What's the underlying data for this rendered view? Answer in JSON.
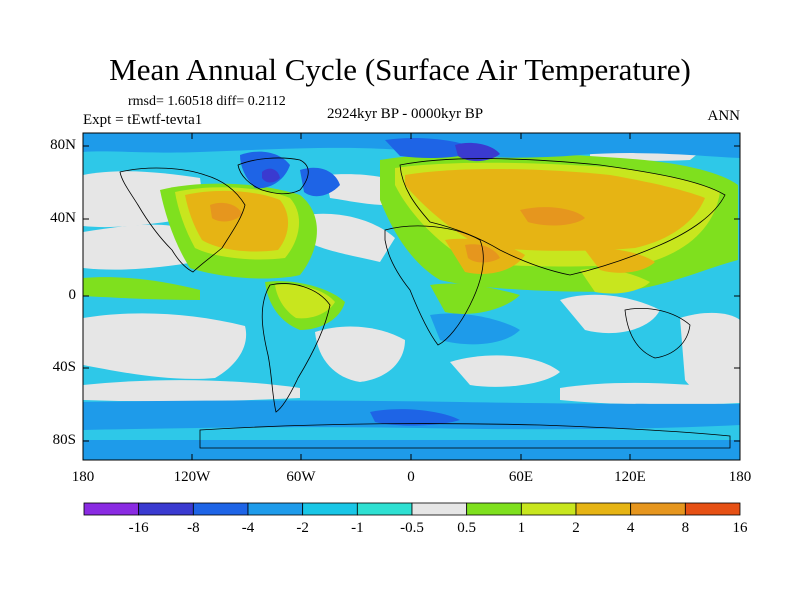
{
  "title": "Mean Annual Cycle (Surface Air Temperature)",
  "stats": "rmsd= 1.60518 diff= 0.2112",
  "experiment": "Expt = tEwtf-tevta1",
  "period": "2924kyr BP - 0000kyr BP",
  "season": "ANN",
  "lat_labels": [
    "80N",
    "40N",
    "0",
    "40S",
    "80S"
  ],
  "lon_labels": [
    "180",
    "120W",
    "60W",
    "0",
    "60E",
    "120E",
    "180"
  ],
  "colorbar": {
    "labels": [
      "-16",
      "-8",
      "-4",
      "-2",
      "-1",
      "-0.5",
      "0.5",
      "1",
      "2",
      "4",
      "8",
      "16"
    ],
    "colors": [
      "#8a2be2",
      "#3a3ad0",
      "#1e64e6",
      "#1e9bea",
      "#19c6e6",
      "#2ee0d2",
      "#e6e6e6",
      "#7fe01e",
      "#c8e61e",
      "#e6b414",
      "#e6961e",
      "#e65014"
    ]
  },
  "map_colors": {
    "ocean_base": "#2ec8e8",
    "neutral": "#e6e6e6",
    "warm1": "#7fe01e",
    "warm2": "#c8e61e",
    "warm3": "#e6b414",
    "warm4": "#e6961e",
    "cool1": "#1e9bea",
    "cool2": "#1e64e6",
    "cool3": "#3a3ad0"
  }
}
